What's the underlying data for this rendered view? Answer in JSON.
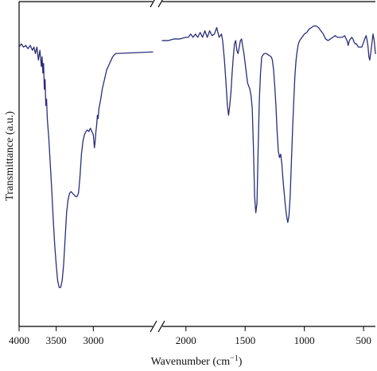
{
  "chart_data": {
    "type": "line",
    "title": "",
    "xlabel_parts": {
      "main": "Wavenumber (cm",
      "sup": "−1",
      "end": ")"
    },
    "ylabel": "Transmittance (a.u.)",
    "x_axis": {
      "reversed": true,
      "broken": true,
      "segments": [
        {
          "xlim": [
            4000,
            2200
          ],
          "ticks": [
            4000,
            3500,
            3000
          ]
        },
        {
          "xlim": [
            2200,
            400
          ],
          "ticks": [
            2000,
            1500,
            1000,
            500
          ]
        }
      ]
    },
    "ylim": [
      0,
      100
    ],
    "grid": false,
    "legend": "none",
    "series": [
      {
        "color": "#2b2d7a",
        "segment": 0,
        "points": [
          [
            4000,
            86
          ],
          [
            3970,
            87
          ],
          [
            3940,
            86
          ],
          [
            3910,
            86.5
          ],
          [
            3880,
            85.5
          ],
          [
            3850,
            86.5
          ],
          [
            3820,
            85
          ],
          [
            3800,
            86
          ],
          [
            3780,
            84
          ],
          [
            3760,
            86
          ],
          [
            3740,
            82
          ],
          [
            3720,
            85
          ],
          [
            3700,
            80
          ],
          [
            3690,
            83
          ],
          [
            3680,
            78
          ],
          [
            3670,
            81
          ],
          [
            3660,
            73
          ],
          [
            3650,
            76
          ],
          [
            3640,
            68
          ],
          [
            3630,
            70
          ],
          [
            3620,
            64
          ],
          [
            3600,
            58
          ],
          [
            3580,
            50
          ],
          [
            3560,
            42
          ],
          [
            3540,
            33
          ],
          [
            3520,
            25
          ],
          [
            3500,
            19
          ],
          [
            3480,
            14
          ],
          [
            3460,
            12
          ],
          [
            3440,
            12
          ],
          [
            3420,
            14
          ],
          [
            3400,
            19
          ],
          [
            3380,
            27
          ],
          [
            3360,
            35
          ],
          [
            3340,
            39
          ],
          [
            3320,
            41
          ],
          [
            3300,
            41.5
          ],
          [
            3280,
            41
          ],
          [
            3260,
            40.5
          ],
          [
            3240,
            40
          ],
          [
            3220,
            40
          ],
          [
            3200,
            41
          ],
          [
            3180,
            46
          ],
          [
            3160,
            53
          ],
          [
            3140,
            57
          ],
          [
            3120,
            59
          ],
          [
            3100,
            60
          ],
          [
            3080,
            60.5
          ],
          [
            3060,
            60
          ],
          [
            3040,
            61
          ],
          [
            3020,
            60
          ],
          [
            3000,
            59
          ],
          [
            2985,
            55
          ],
          [
            2975,
            57
          ],
          [
            2965,
            60
          ],
          [
            2955,
            62
          ],
          [
            2945,
            65
          ],
          [
            2935,
            64
          ],
          [
            2925,
            67
          ],
          [
            2900,
            70
          ],
          [
            2880,
            73
          ],
          [
            2860,
            75
          ],
          [
            2840,
            77
          ],
          [
            2820,
            79
          ],
          [
            2800,
            80
          ],
          [
            2780,
            81
          ],
          [
            2760,
            82
          ],
          [
            2740,
            83
          ],
          [
            2700,
            84
          ],
          [
            2200,
            84.5
          ]
        ]
      },
      {
        "color": "#2b2d7a",
        "segment": 1,
        "points": [
          [
            2200,
            88
          ],
          [
            2150,
            88
          ],
          [
            2100,
            88.5
          ],
          [
            2050,
            88.5
          ],
          [
            2000,
            89
          ],
          [
            1980,
            89
          ],
          [
            1960,
            90
          ],
          [
            1940,
            89
          ],
          [
            1920,
            90
          ],
          [
            1900,
            89
          ],
          [
            1880,
            90.5
          ],
          [
            1860,
            89
          ],
          [
            1840,
            91
          ],
          [
            1820,
            89
          ],
          [
            1800,
            91
          ],
          [
            1780,
            89.5
          ],
          [
            1760,
            90
          ],
          [
            1740,
            92
          ],
          [
            1720,
            89
          ],
          [
            1700,
            90
          ],
          [
            1690,
            88
          ],
          [
            1675,
            82
          ],
          [
            1660,
            74
          ],
          [
            1650,
            68
          ],
          [
            1640,
            65
          ],
          [
            1630,
            68
          ],
          [
            1620,
            72
          ],
          [
            1610,
            78
          ],
          [
            1600,
            83
          ],
          [
            1590,
            87
          ],
          [
            1580,
            88
          ],
          [
            1570,
            85
          ],
          [
            1560,
            84
          ],
          [
            1550,
            86
          ],
          [
            1540,
            88
          ],
          [
            1530,
            88.5
          ],
          [
            1520,
            86
          ],
          [
            1510,
            84
          ],
          [
            1500,
            81
          ],
          [
            1490,
            78
          ],
          [
            1480,
            75
          ],
          [
            1470,
            74
          ],
          [
            1460,
            73
          ],
          [
            1450,
            71
          ],
          [
            1440,
            67
          ],
          [
            1430,
            55
          ],
          [
            1420,
            40
          ],
          [
            1410,
            35
          ],
          [
            1400,
            38
          ],
          [
            1390,
            55
          ],
          [
            1380,
            70
          ],
          [
            1370,
            78
          ],
          [
            1360,
            83
          ],
          [
            1340,
            84
          ],
          [
            1320,
            84
          ],
          [
            1300,
            83.5
          ],
          [
            1280,
            83
          ],
          [
            1270,
            82
          ],
          [
            1260,
            79
          ],
          [
            1250,
            74
          ],
          [
            1240,
            68
          ],
          [
            1230,
            60
          ],
          [
            1220,
            54
          ],
          [
            1210,
            52
          ],
          [
            1200,
            53
          ],
          [
            1190,
            50
          ],
          [
            1180,
            45
          ],
          [
            1170,
            41
          ],
          [
            1160,
            37
          ],
          [
            1150,
            34
          ],
          [
            1140,
            32
          ],
          [
            1130,
            34
          ],
          [
            1120,
            40
          ],
          [
            1110,
            50
          ],
          [
            1100,
            60
          ],
          [
            1090,
            69
          ],
          [
            1080,
            77
          ],
          [
            1070,
            82
          ],
          [
            1060,
            85
          ],
          [
            1050,
            87
          ],
          [
            1040,
            88
          ],
          [
            1020,
            89
          ],
          [
            1000,
            90
          ],
          [
            980,
            90.5
          ],
          [
            960,
            91.5
          ],
          [
            940,
            92
          ],
          [
            920,
            92.5
          ],
          [
            900,
            92.5
          ],
          [
            880,
            92
          ],
          [
            860,
            91
          ],
          [
            840,
            90
          ],
          [
            820,
            88.5
          ],
          [
            800,
            88
          ],
          [
            780,
            88.5
          ],
          [
            760,
            89
          ],
          [
            740,
            89.5
          ],
          [
            720,
            89
          ],
          [
            700,
            89
          ],
          [
            680,
            89
          ],
          [
            660,
            89.5
          ],
          [
            640,
            88
          ],
          [
            630,
            86.5
          ],
          [
            620,
            88
          ],
          [
            610,
            88.5
          ],
          [
            600,
            89
          ],
          [
            590,
            88.5
          ],
          [
            580,
            87.5
          ],
          [
            570,
            87
          ],
          [
            560,
            87
          ],
          [
            545,
            86
          ],
          [
            530,
            86
          ],
          [
            515,
            86
          ],
          [
            505,
            87
          ],
          [
            495,
            88
          ],
          [
            485,
            89
          ],
          [
            478,
            89.5
          ],
          [
            470,
            88
          ],
          [
            462,
            86
          ],
          [
            455,
            83
          ],
          [
            448,
            82
          ],
          [
            440,
            84
          ],
          [
            430,
            87
          ],
          [
            420,
            90
          ],
          [
            410,
            88
          ],
          [
            400,
            84
          ]
        ]
      }
    ]
  }
}
